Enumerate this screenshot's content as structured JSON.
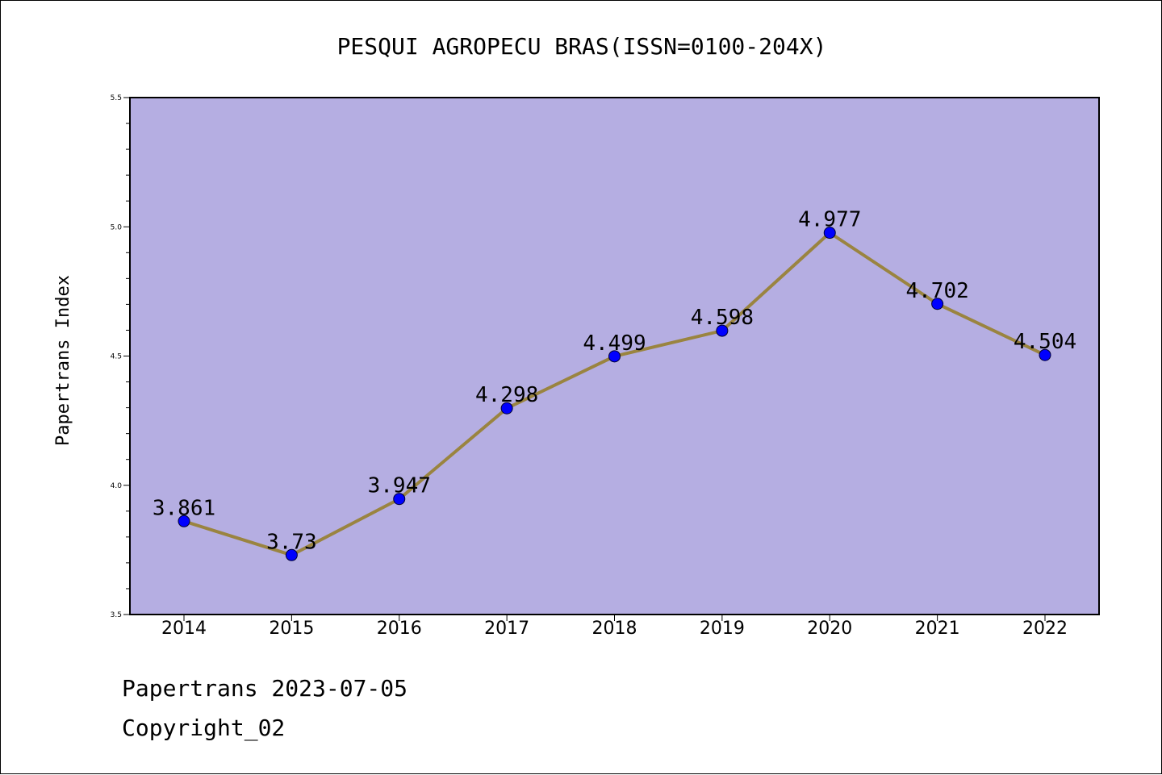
{
  "chart_data": {
    "type": "line",
    "title": "PESQUI AGROPECU BRAS(ISSN=0100-204X)",
    "ylabel": "Papertrans Index",
    "xlabel": "",
    "categories": [
      "2014",
      "2015",
      "2016",
      "2017",
      "2018",
      "2019",
      "2020",
      "2021",
      "2022"
    ],
    "series": [
      {
        "values": [
          3.861,
          3.73,
          3.947,
          4.298,
          4.499,
          4.598,
          4.977,
          4.702,
          4.504
        ],
        "labels": [
          "3.861",
          "3.73",
          "3.947",
          "4.298",
          "4.499",
          "4.598",
          "4.977",
          "4.702",
          "4.504"
        ]
      }
    ],
    "ylim": [
      3.5,
      5.5
    ],
    "yticks": [
      "3.5",
      "4.0",
      "4.5",
      "5.0",
      "5.5"
    ],
    "grid": false,
    "colors": {
      "plot_background": "#b5aee2",
      "line": "#9a8440",
      "marker": "#0000ff"
    }
  },
  "footer": {
    "date_label": "Papertrans 2023-07-05",
    "copyright_label": "Copyright_02"
  }
}
